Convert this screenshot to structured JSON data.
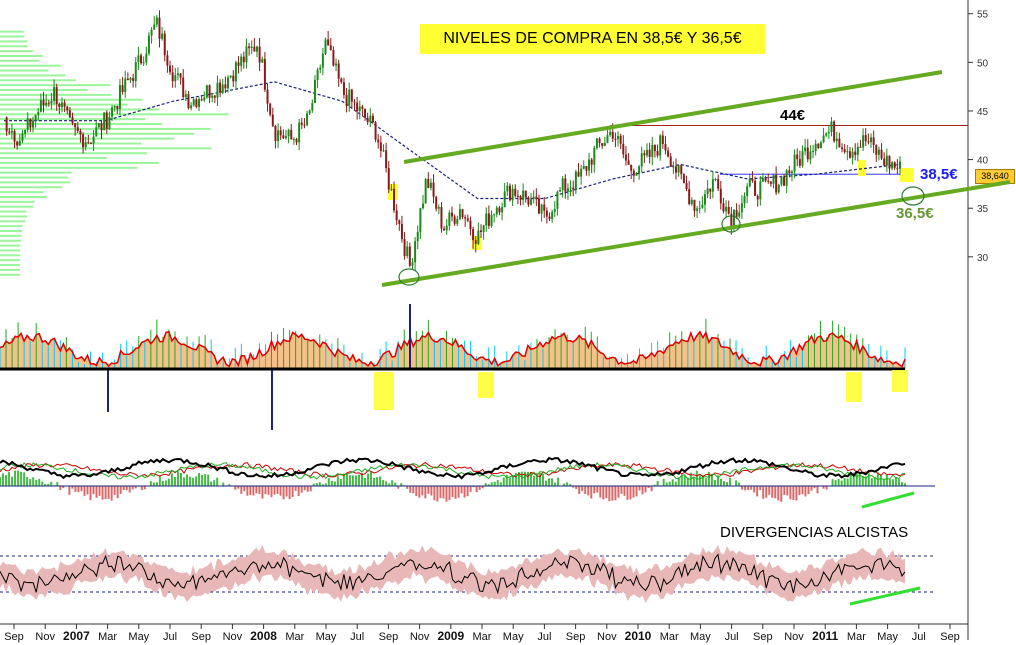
{
  "chart_data": [
    {
      "type": "candlestick",
      "title": "NIVELES DE COMPRA EN 38,5€ Y 36,5€",
      "ylim": [
        27,
        56
      ],
      "y_ticks": [
        30,
        35,
        40,
        45,
        50,
        55
      ],
      "last_price_label": "38,640",
      "x_ticks": [
        "Sep",
        "Nov",
        "2007",
        "Mar",
        "May",
        "Jul",
        "Sep",
        "Nov",
        "2008",
        "Mar",
        "May",
        "Jul",
        "Sep",
        "Nov",
        "2009",
        "Mar",
        "May",
        "Jul",
        "Sep",
        "Nov",
        "2010",
        "Mar",
        "May",
        "Jul",
        "Sep",
        "Nov",
        "2011",
        "Mar",
        "May",
        "Jul",
        "Sep"
      ],
      "price_path": [
        {
          "x": 0,
          "y": 44
        },
        {
          "x": 1,
          "y": 42
        },
        {
          "x": 2,
          "y": 45
        },
        {
          "x": 3,
          "y": 47
        },
        {
          "x": 4,
          "y": 43
        },
        {
          "x": 5,
          "y": 42
        },
        {
          "x": 6,
          "y": 44
        },
        {
          "x": 7,
          "y": 47
        },
        {
          "x": 8,
          "y": 50
        },
        {
          "x": 9,
          "y": 54
        },
        {
          "x": 10,
          "y": 49
        },
        {
          "x": 11,
          "y": 46
        },
        {
          "x": 12,
          "y": 47
        },
        {
          "x": 13,
          "y": 48
        },
        {
          "x": 14,
          "y": 50
        },
        {
          "x": 15,
          "y": 52
        },
        {
          "x": 16,
          "y": 43
        },
        {
          "x": 17,
          "y": 42
        },
        {
          "x": 18,
          "y": 44
        },
        {
          "x": 19,
          "y": 52
        },
        {
          "x": 20,
          "y": 47
        },
        {
          "x": 21,
          "y": 45
        },
        {
          "x": 22,
          "y": 43
        },
        {
          "x": 23,
          "y": 36
        },
        {
          "x": 24,
          "y": 29
        },
        {
          "x": 25,
          "y": 38
        },
        {
          "x": 26,
          "y": 33
        },
        {
          "x": 27,
          "y": 35
        },
        {
          "x": 28,
          "y": 32
        },
        {
          "x": 29,
          "y": 35
        },
        {
          "x": 30,
          "y": 37
        },
        {
          "x": 31,
          "y": 36
        },
        {
          "x": 32,
          "y": 34
        },
        {
          "x": 33,
          "y": 37
        },
        {
          "x": 34,
          "y": 38
        },
        {
          "x": 35,
          "y": 41
        },
        {
          "x": 36,
          "y": 43
        },
        {
          "x": 37,
          "y": 39
        },
        {
          "x": 38,
          "y": 40
        },
        {
          "x": 39,
          "y": 42
        },
        {
          "x": 40,
          "y": 38
        },
        {
          "x": 41,
          "y": 35
        },
        {
          "x": 42,
          "y": 38
        },
        {
          "x": 43,
          "y": 34
        },
        {
          "x": 44,
          "y": 37
        },
        {
          "x": 45,
          "y": 37
        },
        {
          "x": 46,
          "y": 38
        },
        {
          "x": 47,
          "y": 40
        },
        {
          "x": 48,
          "y": 42
        },
        {
          "x": 49,
          "y": 43
        },
        {
          "x": 50,
          "y": 41
        },
        {
          "x": 51,
          "y": 42
        },
        {
          "x": 52,
          "y": 40
        },
        {
          "x": 53,
          "y": 39
        }
      ],
      "moving_average": [
        {
          "x": 0,
          "y": 44
        },
        {
          "x": 6,
          "y": 44
        },
        {
          "x": 10,
          "y": 46
        },
        {
          "x": 16,
          "y": 48
        },
        {
          "x": 20,
          "y": 46
        },
        {
          "x": 24,
          "y": 41
        },
        {
          "x": 28,
          "y": 36
        },
        {
          "x": 32,
          "y": 36
        },
        {
          "x": 36,
          "y": 38
        },
        {
          "x": 40,
          "y": 39.5
        },
        {
          "x": 44,
          "y": 38
        },
        {
          "x": 48,
          "y": 38.5
        },
        {
          "x": 53,
          "y": 39.5
        }
      ],
      "annotations": {
        "resistance_label": "44€",
        "buy_level_1": "38,5€",
        "buy_level_2": "36,5€"
      },
      "levels": {
        "resistance": 43.5,
        "buy_1": 38.5,
        "buy_2": 36.5
      },
      "colors": {
        "channel": "#66aa22",
        "moving_average": "#1a237e",
        "title_bg": "#ffff33",
        "buy_1_label": "#1a1aff",
        "buy_2_label": "#669933",
        "resistance_line": "#990000"
      }
    },
    {
      "type": "area",
      "panel": "oscillator-1",
      "colors": {
        "fill": "#f5c08a",
        "line": "#e00000",
        "positive_green": "#22aa22",
        "negative_cyan": "#00ccff"
      }
    },
    {
      "type": "line",
      "panel": "oscillator-2",
      "colors": {
        "thick_line": "#000000",
        "red": "#cc0000",
        "green": "#22aa22",
        "bars_negative": "#d86a6a",
        "bars_positive": "#44bb44"
      }
    },
    {
      "type": "line",
      "panel": "oscillator-3",
      "annotation": "DIVERGENCIAS ALCISTAS",
      "colors": {
        "band": "#e8b7b7",
        "line": "#000000",
        "guides": "#1a237e",
        "divergence": "#33dd33"
      }
    }
  ]
}
